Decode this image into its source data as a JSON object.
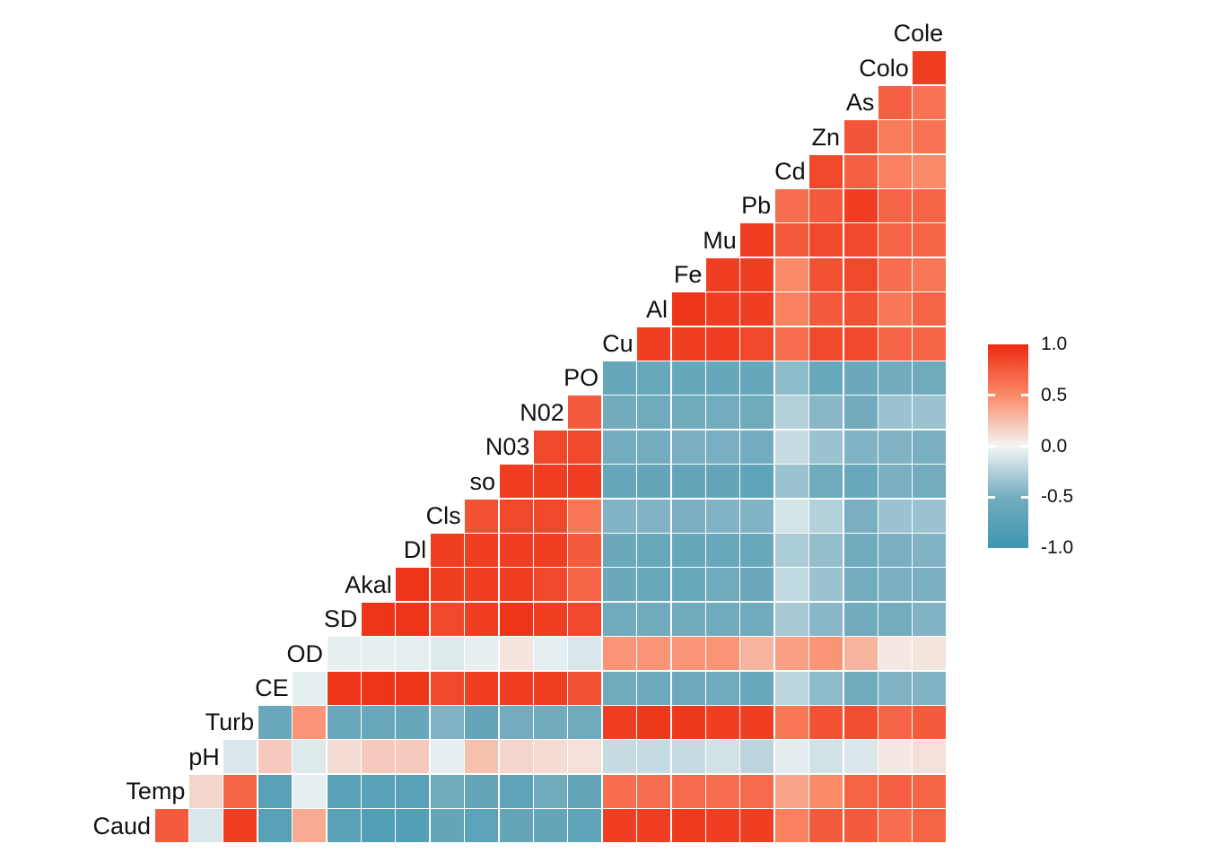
{
  "chart_data": {
    "type": "heatmap",
    "subtype": "correlation-matrix-upper-triangle",
    "title": "",
    "value_range": [
      -1.0,
      1.0
    ],
    "variables": [
      "Caud",
      "Temp",
      "pH",
      "Turb",
      "CE",
      "OD",
      "SD",
      "Akal",
      "Dl",
      "Cls",
      "so",
      "N03",
      "N02",
      "PO",
      "Cu",
      "Al",
      "Fe",
      "Mu",
      "Pb",
      "Cd",
      "Zn",
      "As",
      "Colo",
      "Cole"
    ],
    "rows_note": "rows[i].values are correlations of variables[i] with variables[i+1], variables[i+2], ... read from cell colors",
    "rows": [
      {
        "label": "Caud",
        "values": [
          0.75,
          -0.1,
          0.9,
          -0.75,
          0.35,
          -0.75,
          -0.8,
          -0.8,
          -0.65,
          -0.72,
          -0.65,
          -0.65,
          -0.68,
          0.9,
          0.9,
          0.92,
          0.9,
          0.9,
          0.55,
          0.75,
          0.75,
          0.65,
          0.7
        ]
      },
      {
        "label": "Temp",
        "values": [
          0.15,
          0.7,
          -0.75,
          -0.05,
          -0.75,
          -0.75,
          -0.75,
          -0.55,
          -0.65,
          -0.7,
          -0.55,
          -0.65,
          0.65,
          0.65,
          0.67,
          0.65,
          0.67,
          0.38,
          0.5,
          0.7,
          0.72,
          0.7
        ]
      },
      {
        "label": "pH",
        "values": [
          -0.1,
          0.2,
          -0.08,
          0.12,
          0.2,
          0.2,
          -0.05,
          0.25,
          0.15,
          0.12,
          0.1,
          -0.18,
          -0.18,
          -0.18,
          -0.13,
          -0.22,
          -0.06,
          -0.13,
          -0.1,
          0.06,
          0.1
        ]
      },
      {
        "label": "Turb",
        "values": [
          -0.6,
          0.45,
          -0.6,
          -0.6,
          -0.62,
          -0.45,
          -0.65,
          -0.5,
          -0.52,
          -0.55,
          0.9,
          0.93,
          0.93,
          0.9,
          0.9,
          0.6,
          0.8,
          0.82,
          0.7,
          0.75
        ]
      },
      {
        "label": "CE",
        "values": [
          -0.05,
          0.95,
          0.95,
          0.95,
          0.85,
          0.9,
          0.9,
          0.9,
          0.8,
          -0.55,
          -0.57,
          -0.57,
          -0.55,
          -0.6,
          -0.22,
          -0.4,
          -0.55,
          -0.45,
          -0.45
        ]
      },
      {
        "label": "OD",
        "values": [
          -0.04,
          -0.04,
          -0.05,
          -0.08,
          -0.04,
          0.08,
          -0.05,
          -0.1,
          0.45,
          0.45,
          0.45,
          0.45,
          0.3,
          0.4,
          0.45,
          0.3,
          0.06,
          0.08
        ]
      },
      {
        "label": "SD",
        "values": [
          0.95,
          0.95,
          0.85,
          0.9,
          0.95,
          0.9,
          0.85,
          -0.55,
          -0.55,
          -0.55,
          -0.55,
          -0.55,
          -0.3,
          -0.42,
          -0.52,
          -0.5,
          -0.45
        ]
      },
      {
        "label": "Akal",
        "values": [
          0.95,
          0.9,
          0.9,
          0.9,
          0.85,
          0.7,
          -0.58,
          -0.6,
          -0.6,
          -0.55,
          -0.58,
          -0.2,
          -0.35,
          -0.5,
          -0.48,
          -0.48
        ]
      },
      {
        "label": "Dl",
        "values": [
          0.9,
          0.9,
          0.9,
          0.9,
          0.75,
          -0.58,
          -0.6,
          -0.62,
          -0.6,
          -0.6,
          -0.28,
          -0.38,
          -0.55,
          -0.48,
          -0.45
        ]
      },
      {
        "label": "Cls",
        "values": [
          0.8,
          0.85,
          0.85,
          0.6,
          -0.45,
          -0.45,
          -0.48,
          -0.45,
          -0.45,
          -0.12,
          -0.25,
          -0.48,
          -0.35,
          -0.35
        ]
      },
      {
        "label": "so",
        "values": [
          0.9,
          0.9,
          0.9,
          -0.62,
          -0.65,
          -0.65,
          -0.65,
          -0.68,
          -0.35,
          -0.55,
          -0.6,
          -0.48,
          -0.5
        ]
      },
      {
        "label": "N03",
        "values": [
          0.85,
          0.85,
          -0.5,
          -0.5,
          -0.48,
          -0.48,
          -0.5,
          -0.18,
          -0.35,
          -0.45,
          -0.45,
          -0.48
        ]
      },
      {
        "label": "N02",
        "values": [
          0.75,
          -0.52,
          -0.55,
          -0.55,
          -0.5,
          -0.55,
          -0.25,
          -0.42,
          -0.52,
          -0.35,
          -0.35
        ]
      },
      {
        "label": "PO",
        "values": [
          -0.62,
          -0.6,
          -0.62,
          -0.62,
          -0.62,
          -0.4,
          -0.6,
          -0.58,
          -0.52,
          -0.55
        ]
      },
      {
        "label": "Cu",
        "values": [
          0.9,
          0.9,
          0.9,
          0.85,
          0.65,
          0.85,
          0.85,
          0.7,
          0.7
        ]
      },
      {
        "label": "Al",
        "values": [
          0.95,
          0.9,
          0.9,
          0.55,
          0.75,
          0.8,
          0.6,
          0.7
        ]
      },
      {
        "label": "Fe",
        "values": [
          0.9,
          0.9,
          0.5,
          0.8,
          0.85,
          0.65,
          0.6
        ]
      },
      {
        "label": "Mu",
        "values": [
          0.9,
          0.75,
          0.85,
          0.85,
          0.7,
          0.7
        ]
      },
      {
        "label": "Pb",
        "values": [
          0.65,
          0.75,
          0.9,
          0.7,
          0.7
        ]
      },
      {
        "label": "Cd",
        "values": [
          0.85,
          0.72,
          0.55,
          0.5
        ]
      },
      {
        "label": "Zn",
        "values": [
          0.78,
          0.58,
          0.62
        ]
      },
      {
        "label": "As",
        "values": [
          0.72,
          0.62
        ]
      },
      {
        "label": "Colo",
        "values": [
          0.9
        ]
      },
      {
        "label": "Cole",
        "values": []
      }
    ]
  },
  "legend": {
    "ticks": [
      "1.0",
      "0.5",
      "0.0",
      "-0.5",
      "-1.0"
    ],
    "tick_values": [
      1.0,
      0.5,
      0.0,
      -0.5,
      -1.0
    ]
  },
  "colors": {
    "high": "#EC2B10",
    "pos_half": "#FA8A68",
    "mid": "#F2F5F5",
    "neg_half": "#74ACBF",
    "low": "#3D96AF",
    "background": "#FFFFFF",
    "label_text": "#111111",
    "grid_gap": "#FFFFFF"
  }
}
